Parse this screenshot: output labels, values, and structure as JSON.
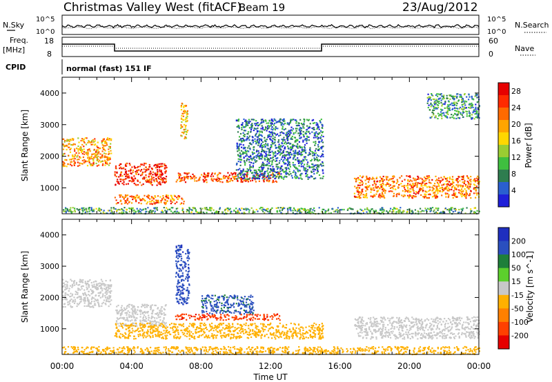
{
  "header": {
    "title": "Christmas Valley West (fitACF)",
    "beam": "Beam 19",
    "date": "23/Aug/2012"
  },
  "top_panels": {
    "nsky_label": "N.Sky",
    "nsearch_label": "N.Search",
    "tick_top": "10^5",
    "tick_bottom": "10^0",
    "freq_label": "Freq.",
    "freq_unit": "[MHz]",
    "freq_ticks": [
      "18",
      "8"
    ],
    "nave_label": "Nave",
    "nave_ticks": [
      "60",
      "0"
    ],
    "cpid_label": "CPID",
    "cpid_text": "normal (fast) 151 IF"
  },
  "colors": {
    "power": [
      "#1f1fd9",
      "#2a5fd0",
      "#2e7d4f",
      "#3fbf3f",
      "#9acd32",
      "#ffd700",
      "#ffa500",
      "#ff6a00",
      "#ff2a00",
      "#e60000"
    ],
    "velocity": [
      "#1f2fbf",
      "#2a4fbf",
      "#1e7f3a",
      "#5ccf2c",
      "#c8c8c8",
      "#ffb000",
      "#ff8000",
      "#ff4000",
      "#e60000"
    ]
  },
  "chart_data": [
    {
      "type": "heatmap",
      "title": "",
      "ylabel": "Slant Range [km]",
      "xlabel": "Time UT",
      "x_ticks": [
        "00:00",
        "04:00",
        "08:00",
        "12:00",
        "16:00",
        "20:00",
        "00:00"
      ],
      "y_ticks": [
        1000,
        2000,
        3000,
        4000
      ],
      "ylim": [
        180,
        4500
      ],
      "xlim_hours": [
        0,
        24
      ],
      "colorbar": {
        "label": "Power [dB]",
        "ticks": [
          4,
          8,
          12,
          16,
          20,
          24,
          28
        ],
        "range": [
          0,
          30
        ]
      },
      "features": [
        {
          "t": [
            0.0,
            2.8
          ],
          "range_km": [
            1700,
            2600
          ],
          "power_dB": 20
        },
        {
          "t": [
            3.0,
            6.0
          ],
          "range_km": [
            1100,
            1800
          ],
          "power_dB": 26
        },
        {
          "t": [
            3.0,
            7.0
          ],
          "range_km": [
            500,
            800
          ],
          "power_dB": 22
        },
        {
          "t": [
            6.5,
            12.5
          ],
          "range_km": [
            1200,
            1500
          ],
          "power_dB": 24
        },
        {
          "t": [
            6.8,
            7.2
          ],
          "range_km": [
            2500,
            3700
          ],
          "power_dB": 18
        },
        {
          "t": [
            10.0,
            15.0
          ],
          "range_km": [
            1300,
            3200
          ],
          "power_dB": 6
        },
        {
          "t": [
            16.8,
            24.0
          ],
          "range_km": [
            700,
            1400
          ],
          "power_dB": 22
        },
        {
          "t": [
            21.0,
            24.0
          ],
          "range_km": [
            3200,
            4000
          ],
          "power_dB": 8
        },
        {
          "t": [
            0.0,
            24.0
          ],
          "range_km": [
            200,
            400
          ],
          "power_dB": 10
        }
      ]
    },
    {
      "type": "heatmap",
      "title": "",
      "ylabel": "Slant Range [km]",
      "xlabel": "Time UT",
      "x_ticks": [
        "00:00",
        "04:00",
        "08:00",
        "12:00",
        "16:00",
        "20:00",
        "00:00"
      ],
      "y_ticks": [
        1000,
        2000,
        3000,
        4000
      ],
      "ylim": [
        180,
        4500
      ],
      "xlim_hours": [
        0,
        24
      ],
      "colorbar": {
        "label": "Velocity [m s^-1]",
        "ticks": [
          200,
          100,
          50,
          15,
          -15,
          -50,
          -100,
          -200
        ],
        "range": [
          -250,
          250
        ]
      },
      "features": [
        {
          "t": [
            0.0,
            2.8
          ],
          "range_km": [
            1700,
            2600
          ],
          "velocity": 0
        },
        {
          "t": [
            3.0,
            6.0
          ],
          "range_km": [
            1100,
            1800
          ],
          "velocity": 0
        },
        {
          "t": [
            6.5,
            7.3
          ],
          "range_km": [
            1800,
            3700
          ],
          "velocity": 180
        },
        {
          "t": [
            6.5,
            12.5
          ],
          "range_km": [
            1300,
            1500
          ],
          "velocity": -180
        },
        {
          "t": [
            8.0,
            11.0
          ],
          "range_km": [
            1500,
            2100
          ],
          "velocity": 150
        },
        {
          "t": [
            3.0,
            15.0
          ],
          "range_km": [
            700,
            1200
          ],
          "velocity": -60
        },
        {
          "t": [
            16.8,
            24.0
          ],
          "range_km": [
            700,
            1400
          ],
          "velocity": 0
        },
        {
          "t": [
            0.0,
            24.0
          ],
          "range_km": [
            200,
            450
          ],
          "velocity": -50
        }
      ]
    }
  ]
}
